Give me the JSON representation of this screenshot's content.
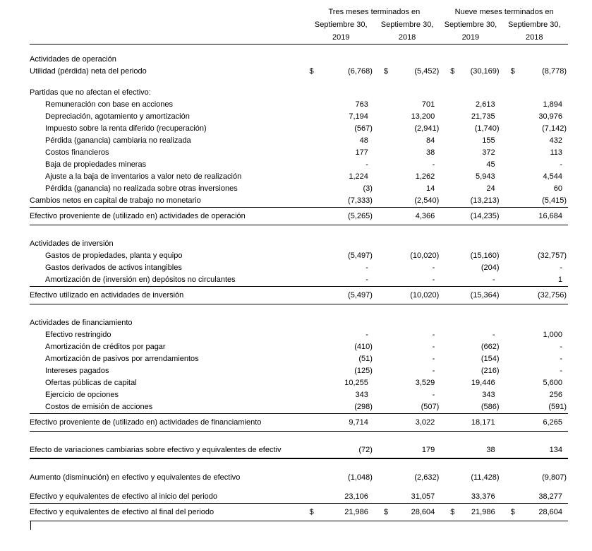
{
  "currency_symbol": "$",
  "header": {
    "group_left": "Tres meses terminados en",
    "group_right": "Nueve meses terminados en",
    "columns": [
      {
        "month": "Septiembre 30,",
        "year": "2019"
      },
      {
        "month": "Septiembre 30,",
        "year": "2018"
      },
      {
        "month": "Septiembre 30,",
        "year": "2019"
      },
      {
        "month": "Septiembre 30,",
        "year": "2018"
      }
    ]
  },
  "rows": [
    {
      "style": "section",
      "label": "Actividades de operación"
    },
    {
      "style": "item",
      "indent": 0,
      "dollar": true,
      "label": "Utilidad (pérdida) neta del periodo",
      "values": [
        "(6,768)",
        "(5,452)",
        "(30,169)",
        "(8,778)"
      ]
    },
    {
      "style": "spacer"
    },
    {
      "style": "section",
      "label": "Partidas que no afectan el efectivo:"
    },
    {
      "style": "item",
      "indent": 1,
      "label": "Remuneración con base en acciones",
      "values": [
        "763",
        "701",
        "2,613",
        "1,894"
      ]
    },
    {
      "style": "item",
      "indent": 1,
      "label": "Depreciación, agotamiento y amortización",
      "values": [
        "7,194",
        "13,200",
        "21,735",
        "30,976"
      ]
    },
    {
      "style": "item",
      "indent": 1,
      "label": "Impuesto sobre la renta diferido (recuperación)",
      "values": [
        "(567)",
        "(2,941)",
        "(1,740)",
        "(7,142)"
      ]
    },
    {
      "style": "item",
      "indent": 1,
      "label": "Pérdida (ganancia) cambiaria no realizada",
      "values": [
        "48",
        "84",
        "155",
        "432"
      ]
    },
    {
      "style": "item",
      "indent": 1,
      "label": "Costos financieros",
      "values": [
        "177",
        "38",
        "372",
        "113"
      ]
    },
    {
      "style": "item",
      "indent": 1,
      "label": "Baja de propiedades mineras",
      "values": [
        "-",
        "-",
        "45",
        "-"
      ]
    },
    {
      "style": "item",
      "indent": 1,
      "label": "Ajuste a la baja de inventarios a valor neto de realización",
      "values": [
        "1,224",
        "1,262",
        "5,943",
        "4,544"
      ]
    },
    {
      "style": "item",
      "indent": 1,
      "label": "Pérdida (ganancia) no realizada sobre otras inversiones",
      "values": [
        "(3)",
        "14",
        "24",
        "60"
      ]
    },
    {
      "style": "item",
      "indent": 0,
      "label": "Cambios netos en capital de trabajo no monetario",
      "values": [
        "(7,333)",
        "(2,540)",
        "(13,213)",
        "(5,415)"
      ]
    },
    {
      "style": "total",
      "label": "Efectivo proveniente de (utilizado en) actividades de operación",
      "values": [
        "(5,265)",
        "4,366",
        "(14,235)",
        "16,684"
      ]
    },
    {
      "style": "spacer-lg"
    },
    {
      "style": "section",
      "label": "Actividades de inversión"
    },
    {
      "style": "item",
      "indent": 1,
      "label": "Gastos de propiedades, planta y equipo",
      "values": [
        "(5,497)",
        "(10,020)",
        "(15,160)",
        "(32,757)"
      ]
    },
    {
      "style": "item",
      "indent": 1,
      "label": "Gastos derivados de activos intangibles",
      "values": [
        "-",
        "-",
        "(204)",
        "-"
      ]
    },
    {
      "style": "item",
      "indent": 1,
      "label": "Amortización de (inversión en) depósitos no circulantes",
      "values": [
        "-",
        "-",
        "-",
        "1"
      ]
    },
    {
      "style": "total",
      "label": "Efectivo utilizado en actividades de inversión",
      "values": [
        "(5,497)",
        "(10,020)",
        "(15,364)",
        "(32,756)"
      ]
    },
    {
      "style": "spacer-lg"
    },
    {
      "style": "section",
      "label": "Actividades de financiamiento"
    },
    {
      "style": "item",
      "indent": 1,
      "label": "Efectivo restringido",
      "values": [
        "-",
        "-",
        "-",
        "1,000"
      ]
    },
    {
      "style": "item",
      "indent": 1,
      "label": "Amortización de créditos por pagar",
      "values": [
        "(410)",
        "-",
        "(662)",
        "-"
      ]
    },
    {
      "style": "item",
      "indent": 1,
      "label": "Amortización de pasivos por arrendamientos",
      "values": [
        "(51)",
        "-",
        "(154)",
        "-"
      ]
    },
    {
      "style": "item",
      "indent": 1,
      "label": "Intereses pagados",
      "values": [
        "(125)",
        "-",
        "(216)",
        "-"
      ]
    },
    {
      "style": "item",
      "indent": 1,
      "label": "Ofertas públicas de capital",
      "values": [
        "10,255",
        "3,529",
        "19,446",
        "5,600"
      ]
    },
    {
      "style": "item",
      "indent": 1,
      "label": "Ejercicio de opciones",
      "values": [
        "343",
        "-",
        "343",
        "256"
      ]
    },
    {
      "style": "item",
      "indent": 1,
      "label": "Costos de emisión de acciones",
      "values": [
        "(298)",
        "(507)",
        "(586)",
        "(591)"
      ]
    },
    {
      "style": "total",
      "label": "Efectivo proveniente de (utilizado en) actividades de financiamiento",
      "values": [
        "9,714",
        "3,022",
        "18,171",
        "6,265"
      ]
    },
    {
      "style": "spacer-lg"
    },
    {
      "style": "fx",
      "label": "Efecto de variaciones cambiarias sobre efectivo y equivalentes de efectiv",
      "values": [
        "(72)",
        "179",
        "38",
        "134"
      ]
    },
    {
      "style": "spacer-lg"
    },
    {
      "style": "item",
      "indent": 0,
      "label": "Aumento (disminución) en efectivo y equivalentes de efectivo",
      "values": [
        "(1,048)",
        "(2,632)",
        "(11,428)",
        "(9,807)"
      ]
    },
    {
      "style": "spacer-sm"
    },
    {
      "style": "item",
      "indent": 0,
      "label": "Efectivo y equivalentes de efectivo al inicio del periodo",
      "values": [
        "23,106",
        "31,057",
        "33,376",
        "38,277"
      ]
    },
    {
      "style": "grand",
      "dollar": true,
      "label": "Efectivo y equivalentes de efectivo al final del periodo",
      "values": [
        "21,986",
        "28,604",
        "21,986",
        "28,604"
      ]
    }
  ]
}
